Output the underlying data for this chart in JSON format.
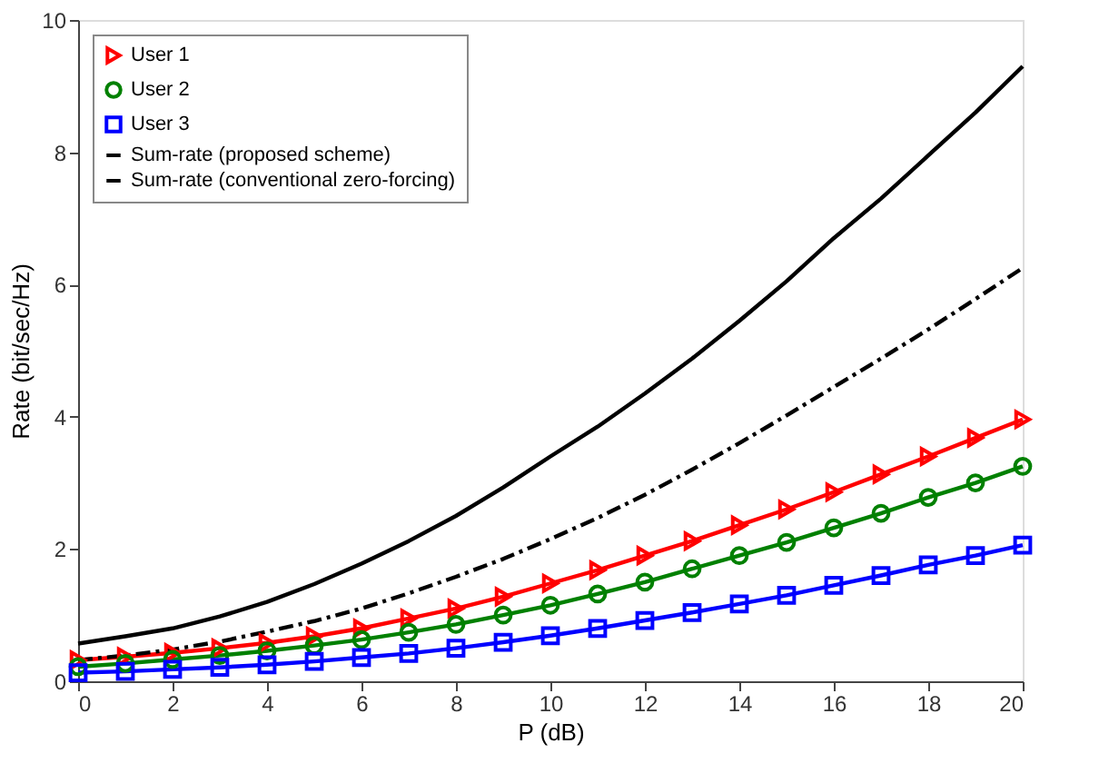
{
  "chart_data": {
    "type": "line",
    "xlabel": "P (dB)",
    "ylabel": "Rate (bit/sec/Hz)",
    "x": [
      0,
      1,
      2,
      3,
      4,
      5,
      6,
      7,
      8,
      9,
      10,
      11,
      12,
      13,
      14,
      15,
      16,
      17,
      18,
      19,
      20
    ],
    "xlim": [
      0,
      20
    ],
    "xticks": [
      0,
      2,
      4,
      6,
      8,
      10,
      12,
      14,
      16,
      18,
      20
    ],
    "ylim": [
      0,
      10
    ],
    "yticks": [
      0,
      2,
      4,
      6,
      8,
      10
    ],
    "grid": false,
    "legend": "top left",
    "series": [
      {
        "name": "User 1",
        "color": "#ff0000",
        "marker": "triangle",
        "line_style": "solid",
        "values": [
          0.32,
          0.37,
          0.43,
          0.5,
          0.58,
          0.68,
          0.8,
          0.95,
          1.1,
          1.28,
          1.48,
          1.68,
          1.9,
          2.12,
          2.36,
          2.6,
          2.86,
          3.13,
          3.4,
          3.68,
          3.96
        ]
      },
      {
        "name": "User 2",
        "color": "#008000",
        "marker": "circle",
        "line_style": "solid",
        "values": [
          0.22,
          0.27,
          0.33,
          0.39,
          0.46,
          0.54,
          0.63,
          0.74,
          0.86,
          1.0,
          1.15,
          1.32,
          1.5,
          1.7,
          1.9,
          2.1,
          2.32,
          2.54,
          2.78,
          3.0,
          3.25
        ]
      },
      {
        "name": "User 3",
        "color": "#0000ff",
        "marker": "square",
        "line_style": "solid",
        "values": [
          0.13,
          0.15,
          0.18,
          0.21,
          0.25,
          0.3,
          0.36,
          0.42,
          0.5,
          0.59,
          0.69,
          0.8,
          0.92,
          1.04,
          1.17,
          1.3,
          1.45,
          1.6,
          1.76,
          1.9,
          2.06
        ]
      },
      {
        "name": "Sum-rate (proposed scheme)",
        "color": "#000000",
        "marker": "none",
        "line_style": "solid",
        "values": [
          0.57,
          0.68,
          0.8,
          0.98,
          1.2,
          1.47,
          1.78,
          2.12,
          2.5,
          2.93,
          3.4,
          3.85,
          4.35,
          4.88,
          5.45,
          6.05,
          6.7,
          7.3,
          7.95,
          8.6,
          9.3
        ]
      },
      {
        "name": "Sum-rate (conventional zero-forcing)",
        "color": "#000000",
        "marker": "none",
        "line_style": "dashed",
        "values": [
          0.32,
          0.39,
          0.48,
          0.6,
          0.75,
          0.91,
          1.1,
          1.33,
          1.58,
          1.85,
          2.15,
          2.47,
          2.82,
          3.2,
          3.6,
          4.02,
          4.45,
          4.88,
          5.32,
          5.78,
          6.25
        ]
      }
    ]
  }
}
